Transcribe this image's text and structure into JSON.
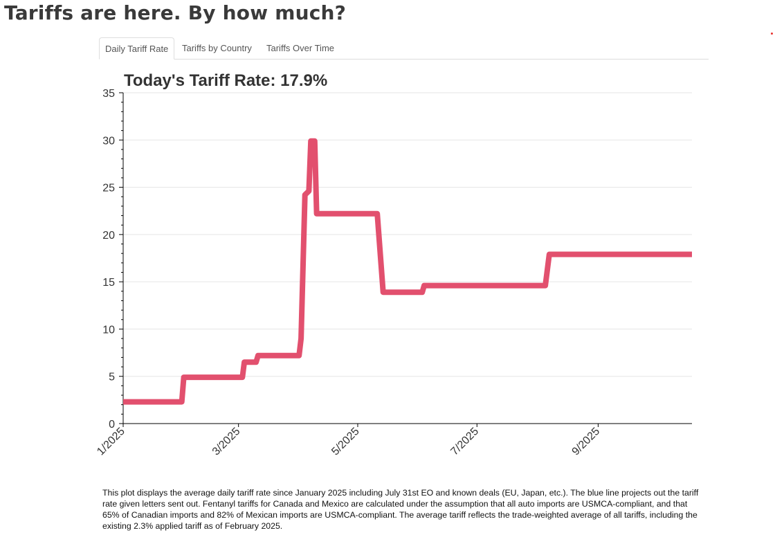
{
  "page": {
    "title": "Tariffs are here. By how much?"
  },
  "tabs": [
    {
      "label": "Daily Tariff Rate",
      "active": true
    },
    {
      "label": "Tariffs by Country",
      "active": false
    },
    {
      "label": "Tariffs Over Time",
      "active": false
    }
  ],
  "chart_data": {
    "type": "line",
    "title": "Today's Tariff Rate: 17.9%",
    "xlabel": "",
    "ylabel": "",
    "x_axis": {
      "type": "date",
      "range": [
        "2025-01-01",
        "2025-10-19"
      ],
      "tick_labels": [
        "1/2025",
        "3/2025",
        "5/2025",
        "7/2025",
        "9/2025"
      ],
      "tick_dates": [
        "2025-01-01",
        "2025-03-01",
        "2025-05-01",
        "2025-07-01",
        "2025-09-01"
      ]
    },
    "y_axis": {
      "range": [
        0,
        35
      ],
      "tick_labels": [
        "0",
        "5",
        "10",
        "15",
        "20",
        "25",
        "30",
        "35"
      ],
      "tick_values": [
        0,
        5,
        10,
        15,
        20,
        25,
        30,
        35
      ]
    },
    "grid": "horizontal",
    "color": "#e2506e",
    "series": [
      {
        "name": "",
        "points": [
          {
            "x": "2025-01-01",
            "y": 2.3
          },
          {
            "x": "2025-01-31",
            "y": 2.3
          },
          {
            "x": "2025-02-01",
            "y": 4.9
          },
          {
            "x": "2025-03-03",
            "y": 4.9
          },
          {
            "x": "2025-03-04",
            "y": 6.5
          },
          {
            "x": "2025-03-10",
            "y": 6.5
          },
          {
            "x": "2025-03-11",
            "y": 7.2
          },
          {
            "x": "2025-04-01",
            "y": 7.2
          },
          {
            "x": "2025-04-02",
            "y": 9.0
          },
          {
            "x": "2025-04-04",
            "y": 24.2
          },
          {
            "x": "2025-04-06",
            "y": 24.6
          },
          {
            "x": "2025-04-07",
            "y": 29.9
          },
          {
            "x": "2025-04-09",
            "y": 29.9
          },
          {
            "x": "2025-04-10",
            "y": 22.2
          },
          {
            "x": "2025-05-11",
            "y": 22.2
          },
          {
            "x": "2025-05-14",
            "y": 13.9
          },
          {
            "x": "2025-06-03",
            "y": 13.9
          },
          {
            "x": "2025-06-04",
            "y": 14.6
          },
          {
            "x": "2025-08-05",
            "y": 14.6
          },
          {
            "x": "2025-08-07",
            "y": 17.9
          },
          {
            "x": "2025-10-19",
            "y": 17.9
          }
        ]
      }
    ]
  },
  "caption": "This plot displays the average daily tariff rate since January 2025 including July 31st EO and known deals (EU, Japan, etc.). The blue line projects out the tariff rate given letters sent out. Fentanyl tariffs for Canada and Mexico are calculated under the assumption that all auto imports are USMCA-compliant, and that 65% of Canadian imports and 82% of Mexican imports are USMCA-compliant. The average tariff reflects the trade-weighted average of all tariffs, including the existing 2.3% applied tariff as of February 2025."
}
